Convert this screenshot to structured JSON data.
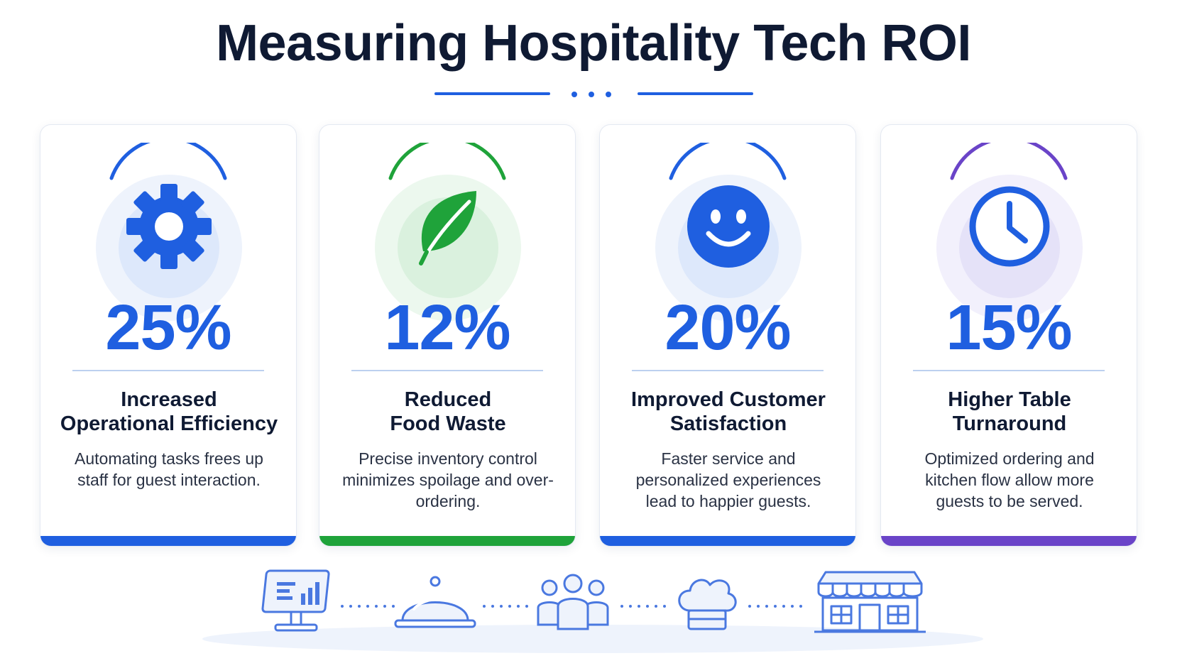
{
  "title": "Measuring Hospitality Tech ROI",
  "colors": {
    "blue": "#1f5fe0",
    "green": "#1fa33a",
    "purple": "#6a44c8",
    "dark": "#0f1a33"
  },
  "cards": [
    {
      "icon": "gear-icon",
      "accent": "#1f5fe0",
      "percent": "25%",
      "heading_line1": "Increased",
      "heading_line2": "Operational Efficiency",
      "description": "Automating tasks frees up staff for guest interaction."
    },
    {
      "icon": "leaf-icon",
      "accent": "#1fa33a",
      "percent": "12%",
      "heading_line1": "Reduced",
      "heading_line2": "Food Waste",
      "description": "Precise inventory control minimizes spoilage and over-ordering."
    },
    {
      "icon": "smiley-icon",
      "accent": "#1f5fe0",
      "percent": "20%",
      "heading_line1": "Improved Customer",
      "heading_line2": "Satisfaction",
      "description": "Faster service and personalized experiences lead to happier guests."
    },
    {
      "icon": "clock-icon",
      "accent": "#6a44c8",
      "percent": "15%",
      "heading_line1": "Higher Table",
      "heading_line2": "Turnaround",
      "description": "Optimized ordering and kitchen flow allow more guests to be served."
    }
  ],
  "footer_icons": [
    "pos-terminal-icon",
    "cloche-icon",
    "group-icon",
    "chef-hat-icon",
    "restaurant-icon"
  ]
}
